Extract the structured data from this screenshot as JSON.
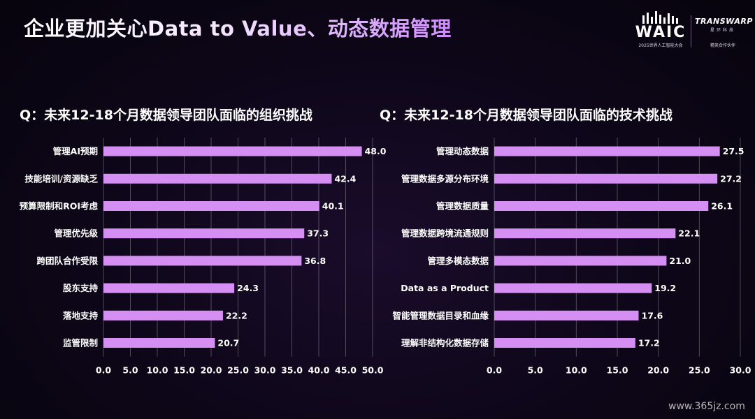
{
  "slide": {
    "title": "企业更加关心Data to Value、动态数据管理"
  },
  "logos": {
    "waic": {
      "word": "WAIC",
      "subtitle": "2025世界人工智能大会"
    },
    "partner": {
      "word": "TRANSWARP",
      "cn": "星环科技",
      "role": "精英合作伙伴"
    }
  },
  "watermark": "www.365jz.com",
  "colors": {
    "bar": "#d58ef2",
    "bar_edge": "#e7b8ff",
    "grid": "#ffffff",
    "title_accent": "#d08cff"
  },
  "chart_data": [
    {
      "type": "bar",
      "orientation": "horizontal",
      "title": "Q：未来12-18个月数据领导团队面临的组织挑战",
      "categories": [
        "管理AI预期",
        "技能培训/资源缺乏",
        "预算限制和ROI考虑",
        "管理优先级",
        "跨团队合作受限",
        "股东支持",
        "落地支持",
        "监管限制"
      ],
      "values": [
        48.0,
        42.4,
        40.1,
        37.3,
        36.8,
        24.3,
        22.2,
        20.7
      ],
      "value_labels": [
        "48.0",
        "42.4",
        "40.1",
        "37.3",
        "36.8",
        "24.3",
        "22.2",
        "20.7"
      ],
      "xlim": [
        0,
        50
      ],
      "ticks": [
        "0.0",
        "5.0",
        "10.0",
        "15.0",
        "20.0",
        "25.0",
        "30.0",
        "35.0",
        "40.0",
        "45.0",
        "50.0"
      ],
      "grid": true
    },
    {
      "type": "bar",
      "orientation": "horizontal",
      "title": "Q：未来12-18个月数据领导团队面临的技术挑战",
      "categories": [
        "管理动态数据",
        "管理数据多源分布环境",
        "管理数据质量",
        "管理数据跨境流通规则",
        "管理多模态数据",
        "Data as a Product",
        "智能管理数据目录和血缘",
        "理解非结构化数据存储"
      ],
      "values": [
        27.5,
        27.2,
        26.1,
        22.1,
        21.0,
        19.2,
        17.6,
        17.2
      ],
      "value_labels": [
        "27.5",
        "27.2",
        "26.1",
        "22.1",
        "21.0",
        "19.2",
        "17.6",
        "17.2"
      ],
      "xlim": [
        0,
        30
      ],
      "ticks": [
        "0.0",
        "5.0",
        "10.0",
        "15.0",
        "20.0",
        "25.0",
        "30.0"
      ],
      "grid": true
    }
  ]
}
